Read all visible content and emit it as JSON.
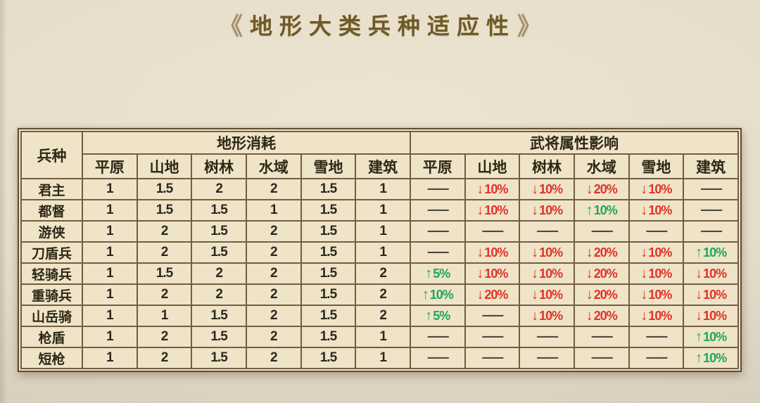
{
  "title": {
    "left_ornament": "《",
    "text": "地形大类兵种适应性",
    "right_ornament": "》"
  },
  "colors": {
    "up": "#1fa65c",
    "down": "#e1322a",
    "dash": "#4e4a3e",
    "table_bg": "#efe4c7",
    "grid": "#715e42",
    "page_bg": "#e6dcca",
    "title": "#6e5a24"
  },
  "table": {
    "unit_header": "兵种",
    "group_headers": [
      "地形消耗",
      "武将属性影响"
    ],
    "terrain_headers": [
      "平原",
      "山地",
      "树林",
      "水域",
      "雪地",
      "建筑"
    ],
    "rows": [
      {
        "unit": "君主",
        "consumption": [
          "1",
          "1.5",
          "2",
          "2",
          "1.5",
          "1"
        ],
        "effects": [
          "——",
          "↓10%",
          "↓10%",
          "↓20%",
          "↓10%",
          "——"
        ]
      },
      {
        "unit": "都督",
        "consumption": [
          "1",
          "1.5",
          "1.5",
          "1",
          "1.5",
          "1"
        ],
        "effects": [
          "——",
          "↓10%",
          "↓10%",
          "↑10%",
          "↓10%",
          "——"
        ]
      },
      {
        "unit": "游侠",
        "consumption": [
          "1",
          "2",
          "1.5",
          "2",
          "1.5",
          "1"
        ],
        "effects": [
          "——",
          "——",
          "——",
          "——",
          "——",
          "——"
        ]
      },
      {
        "unit": "刀盾兵",
        "consumption": [
          "1",
          "2",
          "1.5",
          "2",
          "1.5",
          "1"
        ],
        "effects": [
          "——",
          "↓10%",
          "↓10%",
          "↓20%",
          "↓10%",
          "↑10%"
        ]
      },
      {
        "unit": "轻骑兵",
        "consumption": [
          "1",
          "1.5",
          "2",
          "2",
          "1.5",
          "2"
        ],
        "effects": [
          "↑5%",
          "↓10%",
          "↓10%",
          "↓20%",
          "↓10%",
          "↓10%"
        ]
      },
      {
        "unit": "重骑兵",
        "consumption": [
          "1",
          "2",
          "2",
          "2",
          "1.5",
          "2"
        ],
        "effects": [
          "↑10%",
          "↓20%",
          "↓10%",
          "↓20%",
          "↓10%",
          "↓10%"
        ]
      },
      {
        "unit": "山岳骑",
        "consumption": [
          "1",
          "1",
          "1.5",
          "2",
          "1.5",
          "2"
        ],
        "effects": [
          "↑5%",
          "——",
          "↓10%",
          "↓20%",
          "↓10%",
          "↓10%"
        ]
      },
      {
        "unit": "枪盾",
        "consumption": [
          "1",
          "2",
          "1.5",
          "2",
          "1.5",
          "1"
        ],
        "effects": [
          "——",
          "——",
          "——",
          "——",
          "——",
          "↑10%"
        ]
      },
      {
        "unit": "短枪",
        "consumption": [
          "1",
          "2",
          "1.5",
          "2",
          "1.5",
          "1"
        ],
        "effects": [
          "——",
          "——",
          "——",
          "——",
          "——",
          "↑10%"
        ]
      }
    ]
  }
}
